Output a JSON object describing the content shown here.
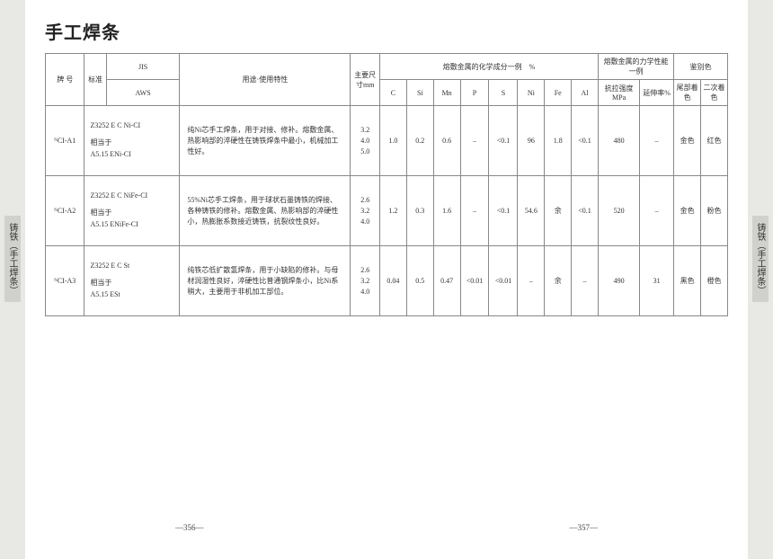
{
  "title": "手工焊条",
  "tab_left": "铸铁（手工焊条）",
  "tab_right": "铸铁（手工焊条）",
  "page_left": "—356—",
  "page_right": "—357—",
  "headers": {
    "brand": "牌 号",
    "standard": "标准",
    "jis": "JIS",
    "aws": "AWS",
    "use": "用途·使用特性",
    "dim": "主要尺寸mm",
    "chem_group": "熔敷金属的化学成分一例　%",
    "mech_group": "熔敷金属的力学性能一例",
    "color_group": "鉴别色",
    "c": "C",
    "si": "Si",
    "mn": "Mn",
    "p": "P",
    "s": "S",
    "ni": "Ni",
    "fe": "Fe",
    "al": "Al",
    "tensile": "抗拉强度MPa",
    "elong": "延伸率%",
    "tail": "尾部着色",
    "second": "二次着色"
  },
  "rows": [
    {
      "brand": "ᴺCI-A1",
      "std_jis": "Z3252 E C Ni-CI",
      "std_rel": "相当于",
      "std_aws": "A5.15 ENi-CI",
      "use": "纯Ni芯手工焊条，用于对接、修补。熔敷金属、热影响部的淬硬性在铸铁焊条中最小，机械加工性好。",
      "dims": "3.2\n4.0\n5.0",
      "c": "1.0",
      "si": "0.2",
      "mn": "0.6",
      "p": "–",
      "s": "<0.1",
      "ni": "96",
      "fe": "1.8",
      "al": "<0.1",
      "tensile": "480",
      "elong": "–",
      "tail": "金色",
      "second": "红色"
    },
    {
      "brand": "ᴺCI-A2",
      "std_jis": "Z3252 E C NiFe-CI",
      "std_rel": "相当于",
      "std_aws": "A5.15 ENiFe-CI",
      "use": "55%Ni芯手工焊条，用于球状石墨铸铁的焊接、各种铸铁的修补。熔敷金属、热影响部的淬硬性小，热膨胀系数接近铸铁，抗裂纹性良好。",
      "dims": "2.6\n3.2\n4.0",
      "c": "1.2",
      "si": "0.3",
      "mn": "1.6",
      "p": "–",
      "s": "<0.1",
      "ni": "54.6",
      "fe": "余",
      "al": "<0.1",
      "tensile": "520",
      "elong": "–",
      "tail": "金色",
      "second": "粉色"
    },
    {
      "brand": "ᴺCI-A3",
      "std_jis": "Z3252 E C St",
      "std_rel": "相当于",
      "std_aws": "A5.15 ESt",
      "use": "纯铁芯低扩散氢焊条，用于小缺陷的修补。与母材润湿性良好，淬硬性比普通钢焊条小，比Ni系稍大，主要用于非机加工部位。",
      "dims": "2.6\n3.2\n4.0",
      "c": "0.04",
      "si": "0.5",
      "mn": "0.47",
      "p": "<0.01",
      "s": "<0.01",
      "ni": "–",
      "fe": "余",
      "al": "–",
      "tensile": "490",
      "elong": "31",
      "tail": "黑色",
      "second": "橙色"
    }
  ]
}
